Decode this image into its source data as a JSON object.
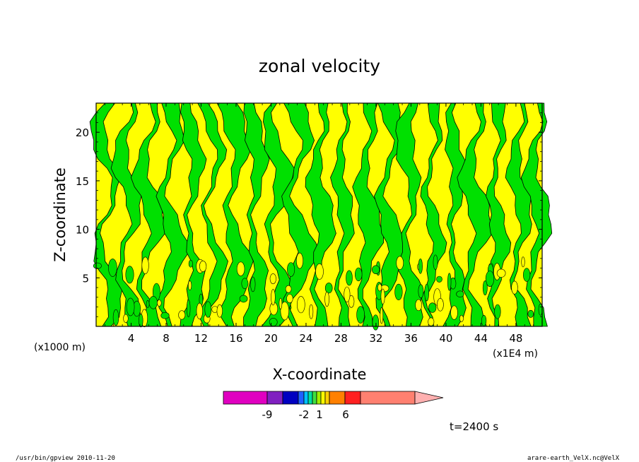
{
  "chart_data": {
    "type": "heatmap",
    "title": "zonal velocity",
    "xlabel": "X-coordinate",
    "ylabel": "Z-coordinate",
    "x_unit_label": "(x1000 m)",
    "x_scale_label": "(x1E4 m)",
    "xlim": [
      0,
      51
    ],
    "ylim": [
      0,
      23
    ],
    "x_ticks": [
      4,
      8,
      12,
      16,
      20,
      24,
      28,
      32,
      36,
      40,
      44,
      48
    ],
    "y_ticks": [
      5,
      10,
      15,
      20
    ],
    "field_note": "alternating bands of near-zero positive (yellow) and negative (green) zonal velocity",
    "colorbar": {
      "colors": [
        "#e000c0",
        "#8020c0",
        "#0000c0",
        "#2060ff",
        "#00c0ff",
        "#00e0a0",
        "#40e040",
        "#a0f000",
        "#ffff00",
        "#ffd000",
        "#ff8000",
        "#ff2020",
        "#ff8070",
        "#ffb0b0"
      ],
      "labels": [
        "-9",
        "-2",
        "1",
        "6"
      ]
    },
    "annotation_time": "t=2400 s"
  },
  "footer": {
    "left": "/usr/bin/gpview   2010-11-20",
    "right": "arare-earth_VelX.nc@VelX"
  },
  "colors": {
    "yellow": "#ffff00",
    "green": "#00e000"
  }
}
